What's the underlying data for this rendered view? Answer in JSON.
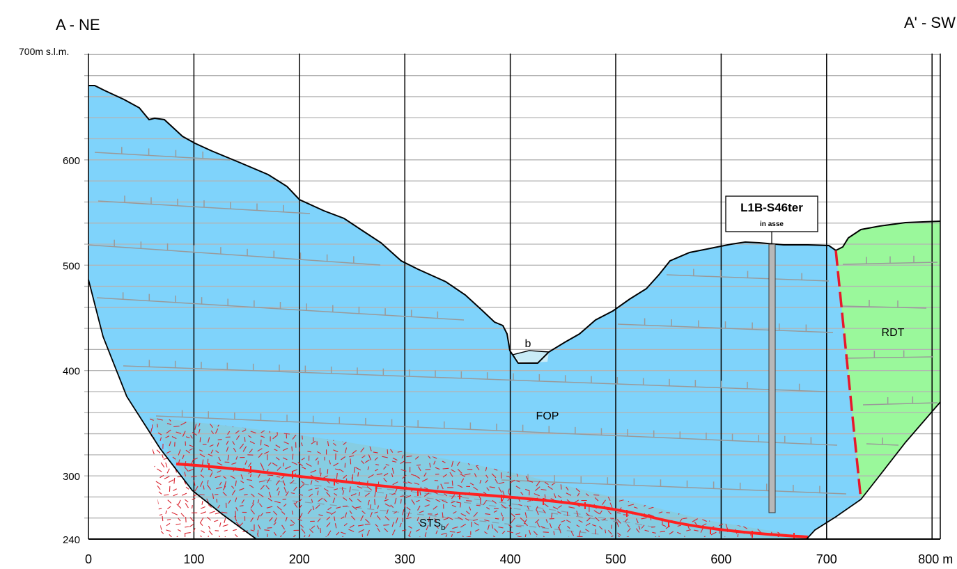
{
  "header": {
    "left_label": "A - NE",
    "right_label": "A' - SW",
    "top_elevation_label": "700m s.l.m."
  },
  "axes": {
    "x_ticks": [
      "0",
      "100",
      "200",
      "300",
      "400",
      "500",
      "600",
      "700",
      "800 m"
    ],
    "x_values": [
      0,
      100,
      200,
      300,
      400,
      500,
      600,
      700,
      800
    ],
    "y_ticks": [
      "600",
      "500",
      "400",
      "300",
      "240"
    ],
    "y_values": [
      600,
      500,
      400,
      300,
      240
    ]
  },
  "units": {
    "fop": "FOP",
    "rdt": "RDT",
    "sts_main": "STS",
    "sts_sub": "b",
    "alluvium": "b"
  },
  "borehole": {
    "name": "L1B-S46ter",
    "note": "in asse"
  },
  "colors": {
    "fop": "#7fd3fb",
    "rdt": "#9af89b",
    "sts": "#86cde2",
    "alluvium": "#c9ecf7",
    "fault": "#e8172b",
    "shear": "#ff2020",
    "grid": "#b3b3b3"
  }
}
